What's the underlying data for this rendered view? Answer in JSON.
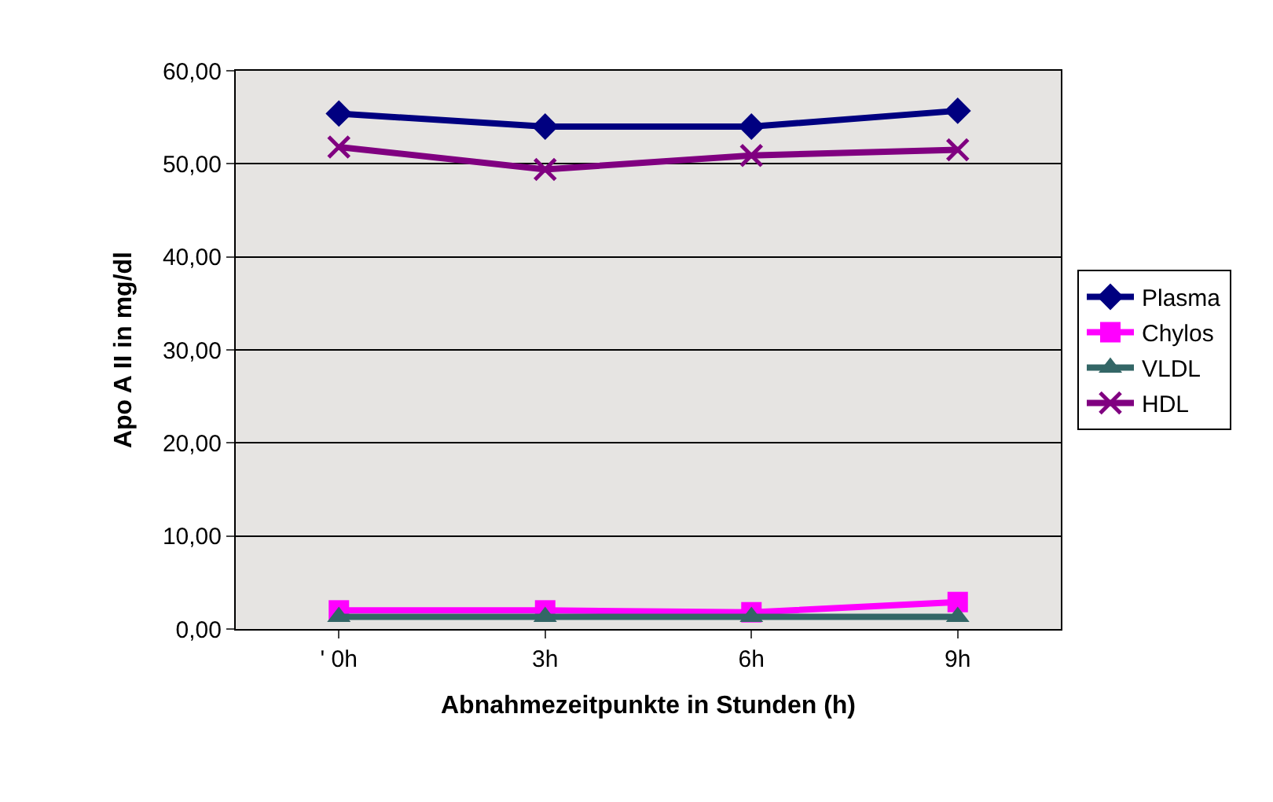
{
  "chart_data": {
    "type": "line",
    "xlabel": "Abnahmezeitpunkte in Stunden (h)",
    "ylabel": "Apo A II in mg/dl",
    "categories": [
      "' 0h",
      "3h",
      "6h",
      "9h"
    ],
    "ylim": [
      0,
      60
    ],
    "yticks": [
      {
        "value": 0,
        "label": "0,00"
      },
      {
        "value": 10,
        "label": "10,00"
      },
      {
        "value": 20,
        "label": "20,00"
      },
      {
        "value": 30,
        "label": "30,00"
      },
      {
        "value": 40,
        "label": "40,00"
      },
      {
        "value": 50,
        "label": "50,00"
      },
      {
        "value": 60,
        "label": "60,00"
      }
    ],
    "grid": "y",
    "legend": "right",
    "series": [
      {
        "name": "Plasma",
        "color": "#000080",
        "marker": "diamond",
        "values": [
          55.4,
          54.0,
          54.0,
          55.7
        ]
      },
      {
        "name": "Chylos",
        "color": "#ff00ff",
        "marker": "square",
        "values": [
          2.0,
          2.0,
          1.8,
          2.9
        ]
      },
      {
        "name": "VLDL",
        "color": "#336666",
        "marker": "triangle",
        "values": [
          1.3,
          1.3,
          1.3,
          1.3
        ]
      },
      {
        "name": "HDL",
        "color": "#800080",
        "marker": "cross",
        "values": [
          51.8,
          49.4,
          50.9,
          51.5
        ]
      }
    ]
  }
}
